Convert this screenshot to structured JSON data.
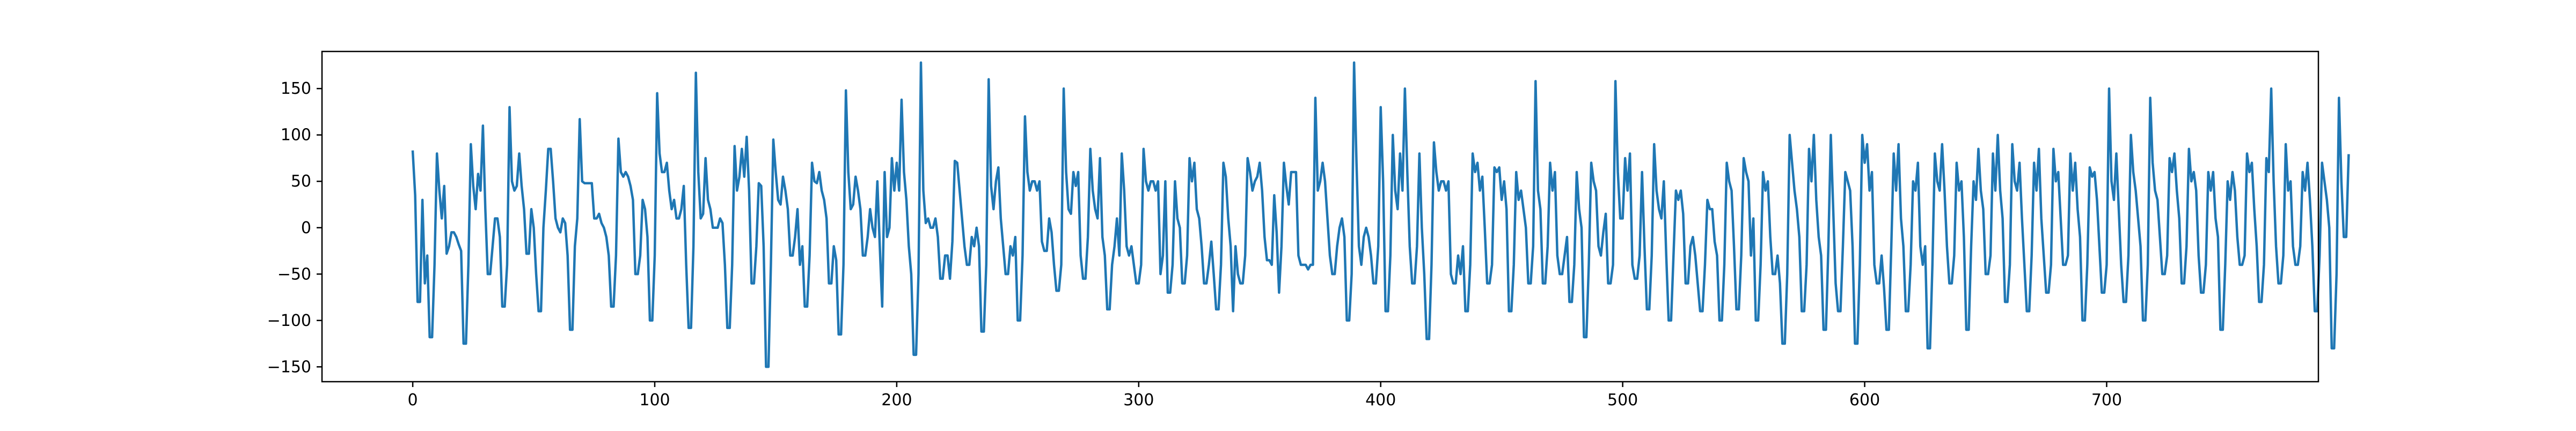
{
  "chart_data": {
    "type": "line",
    "title": "",
    "xlabel": "",
    "ylabel": "",
    "xlim": [
      -37.5,
      787.5
    ],
    "ylim": [
      -166,
      190
    ],
    "xticks": [
      0,
      100,
      200,
      300,
      400,
      500,
      600,
      700
    ],
    "yticks": [
      -150,
      -100,
      -50,
      0,
      50,
      100,
      150
    ],
    "grid": false,
    "legend": "none",
    "series": [
      {
        "color": "#1f77b4",
        "x_start": 0,
        "x_step": 1,
        "values": [
          82,
          35,
          -80,
          -80,
          30,
          -60,
          -30,
          -118,
          -118,
          -40,
          80,
          40,
          10,
          45,
          -28,
          -20,
          -5,
          -5,
          -10,
          -18,
          -25,
          -125,
          -125,
          -40,
          90,
          45,
          20,
          58,
          40,
          110,
          20,
          -50,
          -50,
          -20,
          10,
          10,
          -10,
          -85,
          -85,
          -40,
          130,
          50,
          40,
          45,
          80,
          45,
          20,
          -28,
          -28,
          20,
          0,
          -50,
          -90,
          -90,
          0,
          40,
          85,
          85,
          50,
          10,
          0,
          -5,
          10,
          5,
          -30,
          -110,
          -110,
          -20,
          10,
          117,
          50,
          48,
          48,
          48,
          48,
          10,
          10,
          15,
          5,
          0,
          -10,
          -30,
          -85,
          -85,
          -30,
          96,
          60,
          55,
          60,
          55,
          45,
          30,
          -50,
          -50,
          -30,
          30,
          20,
          -10,
          -100,
          -100,
          -30,
          145,
          80,
          60,
          60,
          70,
          40,
          20,
          30,
          10,
          10,
          20,
          45,
          -40,
          -108,
          -108,
          -20,
          167,
          60,
          10,
          15,
          75,
          30,
          20,
          0,
          0,
          0,
          10,
          5,
          -40,
          -108,
          -108,
          -40,
          88,
          40,
          55,
          85,
          55,
          98,
          40,
          -60,
          -60,
          -20,
          48,
          45,
          -20,
          -150,
          -150,
          -40,
          95,
          60,
          30,
          25,
          55,
          40,
          20,
          -30,
          -30,
          -10,
          20,
          -40,
          -20,
          -85,
          -85,
          -30,
          70,
          50,
          48,
          60,
          40,
          30,
          10,
          -60,
          -60,
          -20,
          -35,
          -115,
          -115,
          -40,
          148,
          60,
          20,
          25,
          55,
          40,
          20,
          -30,
          -30,
          -10,
          20,
          0,
          -10,
          50,
          -20,
          -85,
          60,
          -10,
          0,
          75,
          40,
          70,
          40,
          138,
          60,
          30,
          -20,
          -50,
          -137,
          -137,
          -50,
          178,
          40,
          5,
          10,
          0,
          0,
          10,
          -10,
          -55,
          -55,
          -30,
          -30,
          -55,
          -15,
          72,
          70,
          40,
          10,
          -20,
          -40,
          -40,
          -10,
          -20,
          0,
          -20,
          -112,
          -112,
          -40,
          160,
          45,
          20,
          50,
          65,
          10,
          -20,
          -50,
          -50,
          -20,
          -30,
          -10,
          -100,
          -100,
          -30,
          120,
          60,
          40,
          50,
          50,
          40,
          50,
          -15,
          -25,
          -25,
          10,
          -5,
          -40,
          -68,
          -68,
          -40,
          150,
          60,
          20,
          15,
          60,
          45,
          60,
          -30,
          -55,
          -55,
          -10,
          85,
          40,
          20,
          10,
          75,
          -10,
          -30,
          -88,
          -88,
          -40,
          -20,
          10,
          -30,
          80,
          40,
          -20,
          -30,
          -20,
          -40,
          -60,
          -60,
          -40,
          85,
          50,
          40,
          50,
          50,
          40,
          50,
          -50,
          -30,
          50,
          -70,
          -70,
          -40,
          50,
          10,
          0,
          -60,
          -60,
          -30,
          75,
          50,
          70,
          20,
          10,
          -20,
          -60,
          -60,
          -40,
          -15,
          -50,
          -88,
          -88,
          -40,
          70,
          55,
          10,
          -20,
          -90,
          -20,
          -50,
          -60,
          -60,
          -30,
          75,
          60,
          40,
          50,
          55,
          70,
          40,
          -10,
          -35,
          -35,
          -40,
          35,
          -5,
          -70,
          -20,
          70,
          45,
          25,
          60,
          60,
          60,
          -30,
          -40,
          -40,
          -40,
          -45,
          -40,
          -40,
          140,
          40,
          50,
          70,
          50,
          10,
          -30,
          -50,
          -50,
          -20,
          0,
          10,
          -10,
          -100,
          -100,
          -50,
          178,
          70,
          -20,
          -40,
          -10,
          0,
          -10,
          -30,
          -60,
          -60,
          -20,
          130,
          50,
          -90,
          -90,
          -30,
          100,
          40,
          20,
          80,
          40,
          150,
          60,
          -20,
          -60,
          -60,
          -20,
          80,
          0,
          -50,
          -120,
          -120,
          -40,
          92,
          60,
          40,
          50,
          50,
          40,
          50,
          -50,
          -60,
          -60,
          -30,
          -50,
          -20,
          -90,
          -90,
          -40,
          80,
          60,
          70,
          40,
          55,
          0,
          -60,
          -60,
          -40,
          65,
          60,
          65,
          30,
          50,
          20,
          -90,
          -90,
          -40,
          60,
          30,
          40,
          20,
          0,
          -60,
          -60,
          -20,
          158,
          40,
          20,
          -60,
          -60,
          -20,
          70,
          40,
          60,
          -30,
          -50,
          -50,
          -30,
          -10,
          -80,
          -80,
          -40,
          60,
          20,
          0,
          -118,
          -118,
          -40,
          70,
          50,
          40,
          -20,
          -30,
          -5,
          15,
          -60,
          -60,
          -40,
          158,
          60,
          10,
          10,
          75,
          40,
          80,
          -40,
          -55,
          -55,
          -30,
          60,
          -20,
          -88,
          -88,
          -30,
          90,
          40,
          20,
          10,
          50,
          -30,
          -100,
          -100,
          -30,
          40,
          30,
          40,
          15,
          -60,
          -60,
          -20,
          -10,
          -30,
          -60,
          -90,
          -90,
          -40,
          30,
          20,
          20,
          -15,
          -30,
          -100,
          -100,
          -40,
          70,
          50,
          40,
          -20,
          -88,
          -88,
          -30,
          75,
          60,
          50,
          -30,
          10,
          -100,
          -100,
          -40,
          60,
          40,
          50,
          -10,
          -50,
          -50,
          -30,
          -60,
          -125,
          -125,
          -50,
          100,
          70,
          40,
          20,
          -10,
          -90,
          -90,
          -40,
          85,
          50,
          100,
          30,
          -10,
          -30,
          -110,
          -110,
          -20,
          100,
          20,
          -60,
          -90,
          -90,
          -20,
          60,
          50,
          40,
          -20,
          -125,
          -125,
          -40,
          100,
          70,
          90,
          40,
          60,
          -40,
          -60,
          -60,
          -30,
          -65,
          -110,
          -110,
          -20,
          80,
          40,
          90,
          10,
          -20,
          -90,
          -90,
          -40,
          50,
          40,
          70,
          -20,
          -40,
          -20,
          -130,
          -130,
          -40,
          80,
          50,
          40,
          90,
          40,
          -20,
          -60,
          -60,
          -30,
          70,
          40,
          50,
          -10,
          -110,
          -110,
          -20,
          50,
          30,
          85,
          40,
          20,
          -50,
          -50,
          -30,
          80,
          40,
          100,
          40,
          10,
          -80,
          -80,
          -40,
          90,
          50,
          40,
          70,
          10,
          -40,
          -90,
          -90,
          -30,
          70,
          40,
          85,
          10,
          -30,
          -70,
          -70,
          -40,
          85,
          50,
          60,
          10,
          -40,
          -40,
          -30,
          80,
          40,
          70,
          20,
          -10,
          -100,
          -100,
          -40,
          65,
          55,
          60,
          30,
          -20,
          -70,
          -70,
          -40,
          150,
          50,
          30,
          80,
          20,
          -40,
          -80,
          -80,
          -30,
          100,
          60,
          40,
          10,
          -20,
          -100,
          -100,
          -40,
          140,
          70,
          40,
          30,
          -10,
          -50,
          -50,
          -30,
          75,
          60,
          80,
          40,
          10,
          -60,
          -60,
          -20,
          85,
          50,
          60,
          40,
          -30,
          -70,
          -70,
          -40,
          60,
          40,
          60,
          10,
          -10,
          -110,
          -110,
          -40,
          50,
          30,
          60,
          40,
          -10,
          -40,
          -40,
          -30,
          80,
          60,
          70,
          20,
          -20,
          -80,
          -80,
          -40,
          75,
          60,
          150,
          50,
          -20,
          -60,
          -60,
          -30,
          90,
          40,
          50,
          -20,
          -40,
          -40,
          -20,
          60,
          40,
          70,
          30,
          -20,
          -90,
          -90,
          -30,
          70,
          50,
          30,
          0,
          -130,
          -130,
          -50,
          140,
          50,
          -10,
          -10,
          78
        ]
      }
    ]
  }
}
